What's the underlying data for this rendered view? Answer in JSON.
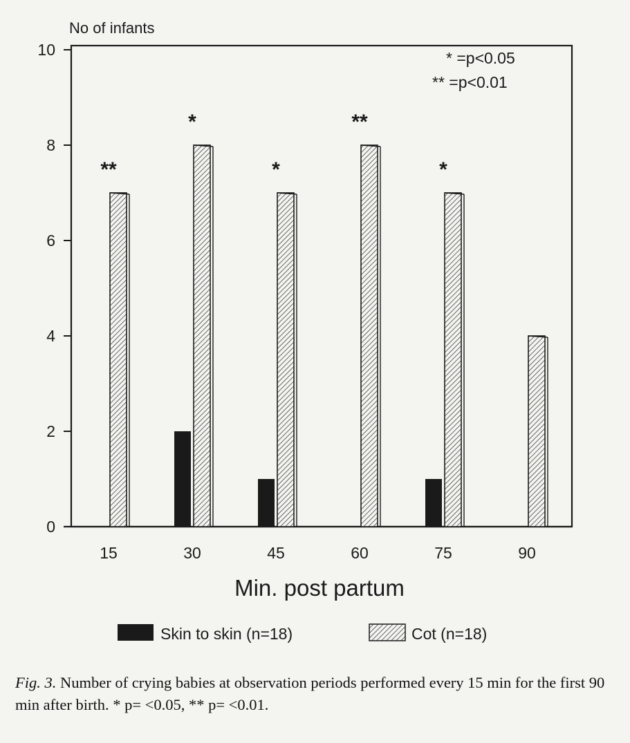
{
  "chart_data": {
    "type": "bar",
    "ylabel": "No of infants",
    "xlabel": "Min. post partum",
    "ylim": [
      0,
      10
    ],
    "yticks": [
      "0",
      "2",
      "4",
      "6",
      "8",
      "10"
    ],
    "categories": [
      "15",
      "30",
      "45",
      "60",
      "75",
      "90"
    ],
    "series": [
      {
        "name": "Skin to skin (n=18)",
        "values": [
          0,
          2,
          1,
          0,
          1,
          0
        ],
        "color": "#1a1a1a"
      },
      {
        "name": "Cot (n=18)",
        "values": [
          7,
          8,
          7,
          8,
          7,
          4
        ],
        "color": "hatched"
      }
    ],
    "significance": [
      "**",
      "*",
      "*",
      "**",
      "*",
      ""
    ],
    "key": [
      "* =p<0.05",
      "** =p<0.01"
    ],
    "legend_position": "bottom",
    "grid": false
  },
  "caption": {
    "fig_label": "Fig. 3.",
    "text": " Number of crying babies at observation periods performed every 15 min for the first 90 min after birth. * p= <0.05, ** p= <0.01."
  }
}
